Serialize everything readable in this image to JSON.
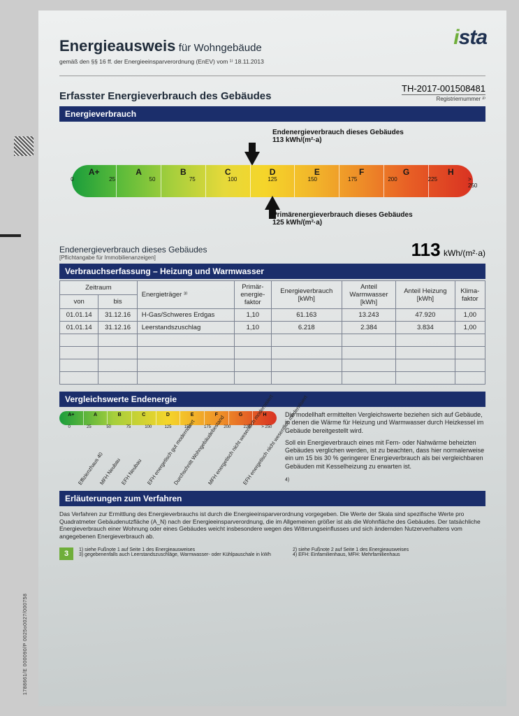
{
  "logo": {
    "text_i": "i",
    "text_rest": "sta"
  },
  "header": {
    "title_main": "Energieausweis",
    "title_sub": "für Wohngebäude",
    "subtitle": "gemäß den §§ 16 ff. der Energieeinsparverordnung (EnEV) vom ¹⁾ 18.11.2013"
  },
  "section1": {
    "heading": "Erfasster Energieverbrauch des Gebäudes",
    "reg_number": "TH-2017-001508481",
    "reg_label": "Registriernummer ²⁾"
  },
  "scale_header": "Energieverbrauch",
  "scale": {
    "classes": [
      "A+",
      "A",
      "B",
      "C",
      "D",
      "E",
      "F",
      "G",
      "H"
    ],
    "tick_labels": [
      "0",
      "25",
      "50",
      "75",
      "100",
      "125",
      "150",
      "175",
      "200",
      "225",
      "> 250"
    ],
    "tick_positions_pct": [
      0,
      10,
      20,
      30,
      40,
      50,
      60,
      70,
      80,
      90,
      100
    ],
    "marker_letter": "D",
    "marker_pos_pct": 45,
    "top_annotation_l1": "Endenergieverbrauch dieses Gebäudes",
    "top_annotation_l2": "113 kWh/(m²·a)",
    "bottom_annotation_l1": "Primärenergieverbrauch dieses Gebäudes",
    "bottom_annotation_l2": "125 kWh/(m²·a)",
    "bottom_marker_pos_pct": 50,
    "colors": [
      "#1a9d3b",
      "#5cbb3a",
      "#a6cf3c",
      "#e6d93a",
      "#f5d52a",
      "#f2b62a",
      "#ee8d28",
      "#e85f25",
      "#d93222"
    ]
  },
  "end_energy": {
    "label": "Endenergieverbrauch dieses Gebäudes",
    "hint": "[Pflichtangabe für Immobilienanzeigen]",
    "value": "113",
    "unit": "kWh/(m²·a)"
  },
  "table": {
    "header": "Verbrauchserfassung – Heizung und Warmwasser",
    "col_zeitraum": "Zeitraum",
    "col_von": "von",
    "col_bis": "bis",
    "col_traeger": "Energieträger ³⁾",
    "col_pef": "Primär-\nenergie-\nfaktor",
    "col_verbrauch": "Energieverbrauch\n[kWh]",
    "col_ww": "Anteil\nWarmwasser\n[kWh]",
    "col_heiz": "Anteil Heizung\n[kWh]",
    "col_klima": "Klima-\nfaktor",
    "rows": [
      {
        "von": "01.01.14",
        "bis": "31.12.16",
        "traeger": "H-Gas/Schweres Erdgas",
        "pef": "1,10",
        "verbrauch": "61.163",
        "ww": "13.243",
        "heiz": "47.920",
        "klima": "1,00"
      },
      {
        "von": "01.01.14",
        "bis": "31.12.16",
        "traeger": "Leerstandszuschlag",
        "pef": "1,10",
        "verbrauch": "6.218",
        "ww": "2.384",
        "heiz": "3.834",
        "klima": "1,00"
      }
    ],
    "empty_rows": 4
  },
  "compare": {
    "header": "Vergleichswerte Endenergie",
    "mini_classes": [
      "A+",
      "A",
      "B",
      "C",
      "D",
      "E",
      "F",
      "G",
      "H"
    ],
    "mini_ticks": [
      "0",
      "25",
      "50",
      "75",
      "100",
      "125",
      "150",
      "175",
      "200",
      "225",
      "> 250"
    ],
    "labels": [
      "Effizienzhaus 40",
      "MFH Neubau",
      "EFH Neubau",
      "EFH energetisch gut modernisiert",
      "Durchschnitt Wohngebäudebestand",
      "MFH energetisch nicht wesentlich modernisiert",
      "EFH energetisch nicht wesentlich modernisiert"
    ],
    "text_p1": "Die modellhaft ermittelten Vergleichswerte beziehen sich auf Gebäude, in denen die Wärme für Heizung und Warmwasser durch Heizkessel im Gebäude bereitgestellt wird.",
    "text_p2": "Soll ein Energieverbrauch eines mit Fern- oder Nahwärme beheizten Gebäudes verglichen werden, ist zu beachten, dass hier normalerweise ein um 15 bis 30 % geringerer Energieverbrauch als bei vergleichbaren Gebäuden mit Kesselheizung zu erwarten ist.",
    "footnote_4": "4)"
  },
  "proc": {
    "header": "Erläuterungen zum Verfahren",
    "text": "Das Verfahren zur Ermittlung des Energieverbrauchs ist durch die Energieeinsparverordnung vorgegeben. Die Werte der Skala sind spezifische Werte pro Quadratmeter Gebäudenutzfläche (A_N) nach der Energieeinsparverordnung, die im Allgemeinen größer ist als die Wohnfläche des Gebäudes. Der tatsächliche Energieverbrauch einer Wohnung oder eines Gebäudes weicht insbesondere wegen des Witterungseinflusses und sich ändernden Nutzerverhaltens vom angegebenen Energieverbrauch ab."
  },
  "footer": {
    "page": "3",
    "n1": "1) siehe Fußnote 1 auf Seite 1 des Energieausweises",
    "n2": "2) siehe Fußnote 2 auf Seite 1 des Energieausweises",
    "n3": "3) gegebenenfalls auch Leerstandszuschläge, Warmwasser- oder Kühlpauschale in kWh",
    "n4": "4) EFH: Einfamilienhaus, MFH: Mehrfamilienhaus"
  },
  "side_code": "1788661/E 000090/P 0025o0027/000758"
}
